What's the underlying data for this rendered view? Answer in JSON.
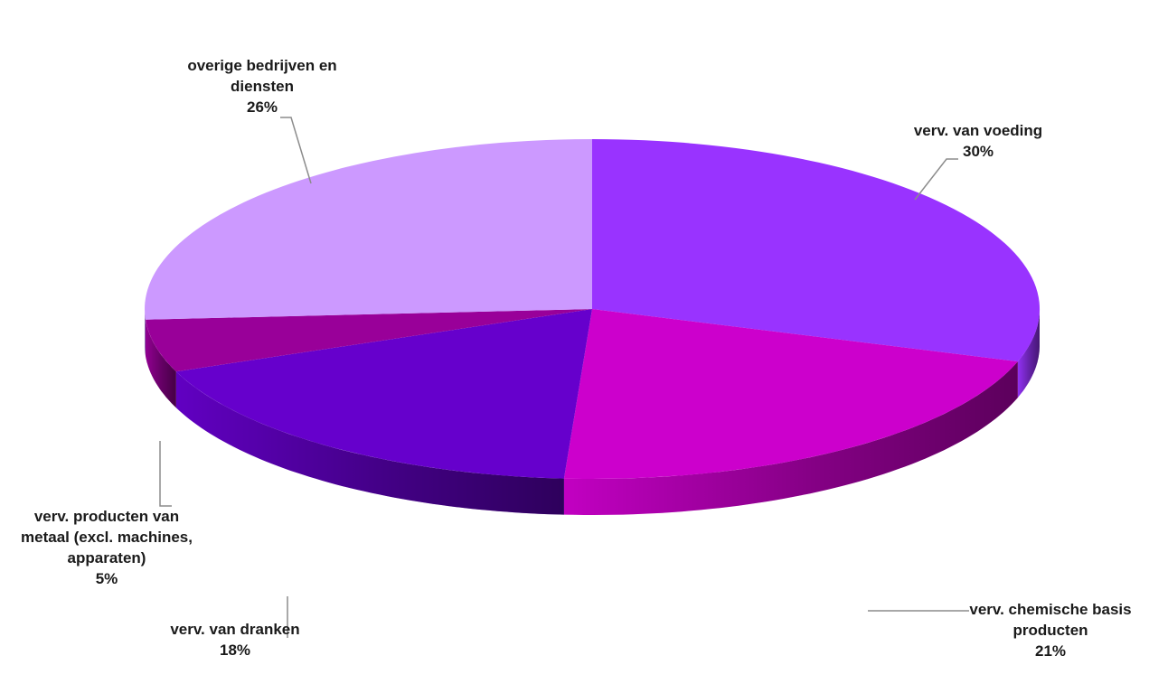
{
  "chart_data": {
    "type": "pie",
    "style": "3d",
    "title": "",
    "slices": [
      {
        "label_lines": [
          "verv. van voeding"
        ],
        "value": 30,
        "value_label": "30%",
        "color": "#9933ff"
      },
      {
        "label_lines": [
          "verv. chemische basis",
          "producten"
        ],
        "value": 21,
        "value_label": "21%",
        "color": "#cc00cc"
      },
      {
        "label_lines": [
          "verv. van dranken"
        ],
        "value": 18,
        "value_label": "18%",
        "color": "#6600cc"
      },
      {
        "label_lines": [
          "verv. producten van",
          "metaal (excl. machines,",
          "apparaten)"
        ],
        "value": 5,
        "value_label": "5%",
        "color": "#990099"
      },
      {
        "label_lines": [
          "overige bedrijven en",
          "diensten"
        ],
        "value": 26,
        "value_label": "26%",
        "color": "#cc99ff"
      }
    ]
  }
}
